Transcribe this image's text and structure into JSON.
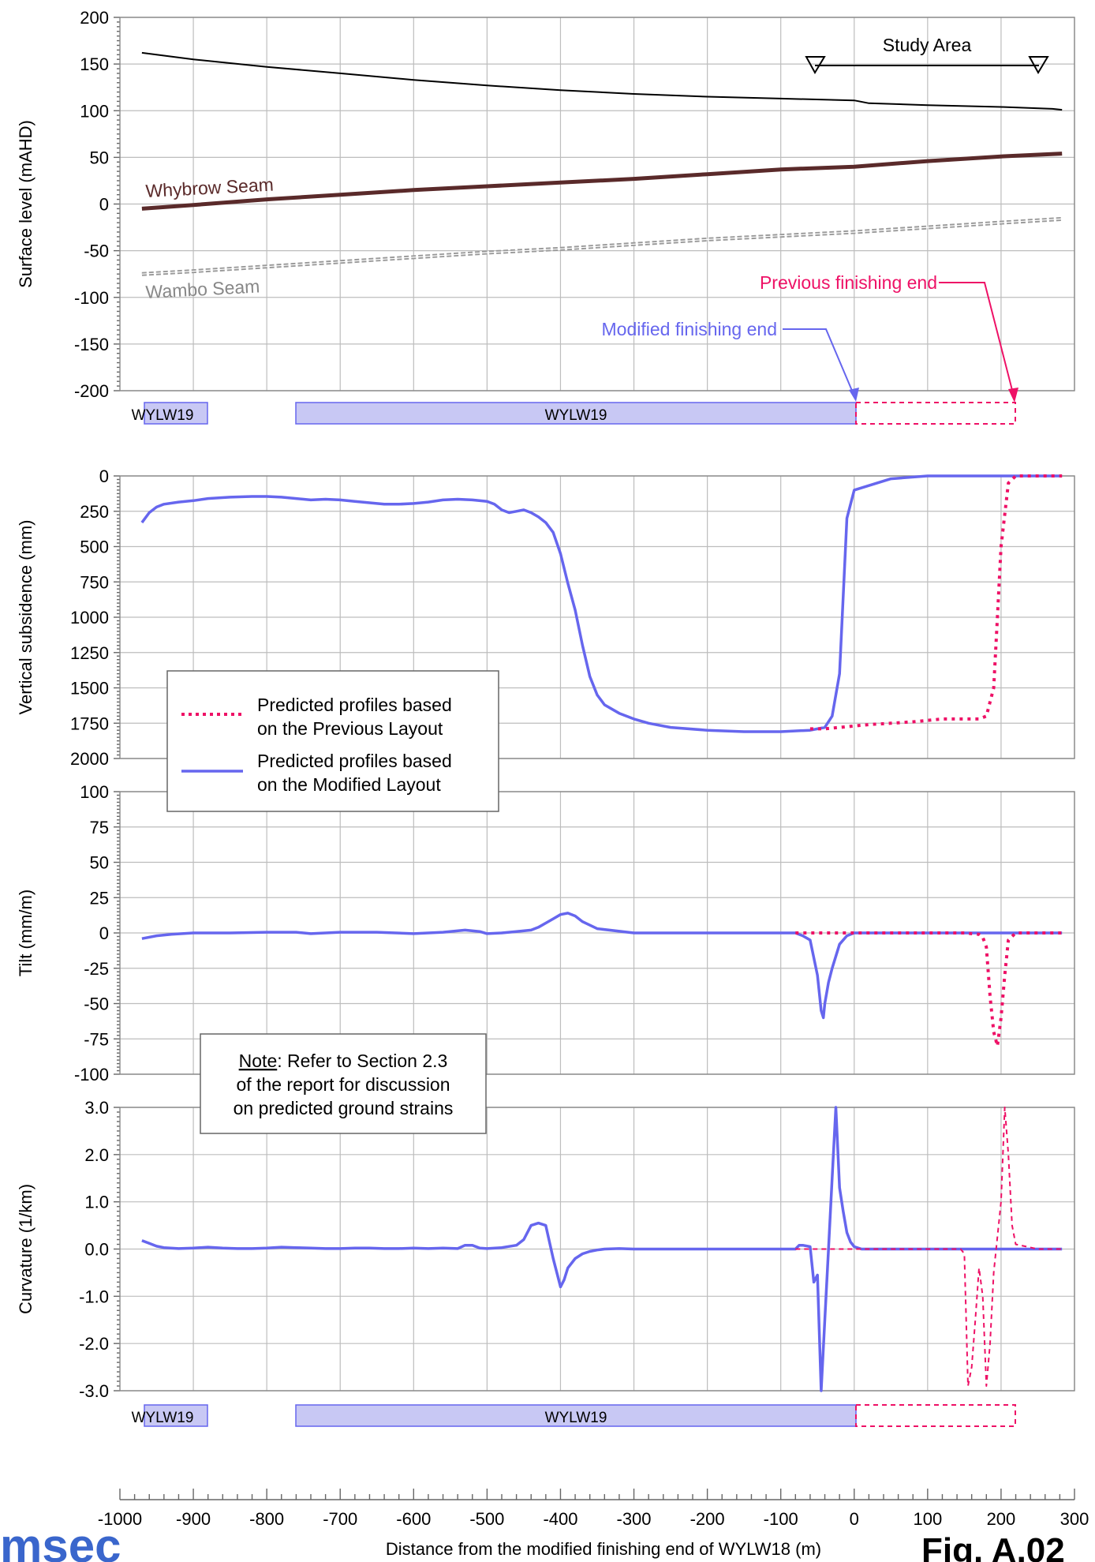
{
  "colors": {
    "modified": "#6666ee",
    "previous": "#ee1166",
    "surface": "#000000",
    "whybrow": "#5a2a2a",
    "wambo": "#999999",
    "panel_fill": "#c8c8f4"
  },
  "labels": {
    "study_area": "Study Area",
    "whybrow": "Whybrow Seam",
    "wambo": "Wambo Seam",
    "prev_end": "Previous finishing end",
    "mod_end": "Modified finishing end",
    "panel": "WYLW19",
    "legend_prev_1": "Predicted profiles based",
    "legend_prev_2": "on the Previous Layout",
    "legend_mod_1": "Predicted profiles based",
    "legend_mod_2": "on the Modified Layout",
    "note_1_underlined": "Note",
    "note_1_rest": ": Refer to Section 2.3",
    "note_2": "of the report for discussion",
    "note_3": "on predicted ground strains",
    "logo": "msec",
    "fig_label": "Fig. A.02"
  },
  "chart_data": [
    {
      "type": "line",
      "ylabel": "Surface level (mAHD)",
      "ylim": [
        -200,
        200
      ],
      "yticks": [
        "200",
        "150",
        "100",
        "50",
        "0",
        "-50",
        "-100",
        "-150",
        "-200"
      ],
      "xlim": [
        -1000,
        300
      ],
      "grid": true,
      "series": [
        {
          "name": "Surface",
          "x": [
            -970,
            -900,
            -800,
            -700,
            -600,
            -500,
            -400,
            -300,
            -200,
            -100,
            0,
            20,
            100,
            200,
            270,
            283
          ],
          "y": [
            162,
            155,
            147,
            140,
            133,
            127,
            122,
            118,
            115,
            113,
            111,
            108,
            106,
            104,
            102,
            101
          ]
        },
        {
          "name": "Whybrow Seam",
          "x": [
            -970,
            -900,
            -800,
            -700,
            -600,
            -500,
            -400,
            -300,
            -200,
            -100,
            0,
            100,
            200,
            283
          ],
          "y": [
            -5,
            -1,
            5,
            10,
            15,
            19,
            23,
            27,
            32,
            37,
            40,
            46,
            51,
            54
          ]
        },
        {
          "name": "Wambo Seam",
          "x": [
            -970,
            -900,
            -800,
            -700,
            -600,
            -500,
            -400,
            -300,
            -200,
            -100,
            0,
            100,
            200,
            283
          ],
          "y": [
            -75,
            -72,
            -67,
            -62,
            -57,
            -52,
            -48,
            -43,
            -38,
            -34,
            -30,
            -25,
            -20,
            -16
          ]
        }
      ]
    },
    {
      "type": "line",
      "ylabel": "Vertical subsidence (mm)",
      "ylim": [
        0,
        2000
      ],
      "yticks": [
        "0",
        "250",
        "500",
        "750",
        "1000",
        "1250",
        "1500",
        "1750",
        "2000"
      ],
      "xlim": [
        -1000,
        300
      ],
      "grid": true,
      "series": [
        {
          "name": "Predicted profiles based on the Modified Layout",
          "x": [
            -970,
            -960,
            -950,
            -940,
            -920,
            -900,
            -880,
            -850,
            -820,
            -800,
            -780,
            -760,
            -740,
            -720,
            -700,
            -680,
            -660,
            -640,
            -620,
            -600,
            -580,
            -560,
            -540,
            -520,
            -500,
            -490,
            -480,
            -470,
            -460,
            -450,
            -440,
            -430,
            -420,
            -410,
            -400,
            -390,
            -380,
            -370,
            -360,
            -350,
            -340,
            -320,
            -300,
            -280,
            -250,
            -200,
            -150,
            -100,
            -60,
            -50,
            -40,
            -30,
            -20,
            -10,
            0,
            50,
            100,
            150,
            200,
            250,
            283
          ],
          "y": [
            330,
            260,
            220,
            200,
            185,
            175,
            160,
            150,
            145,
            145,
            150,
            160,
            170,
            165,
            170,
            180,
            190,
            200,
            200,
            195,
            185,
            170,
            165,
            170,
            180,
            200,
            240,
            260,
            250,
            240,
            260,
            290,
            330,
            400,
            550,
            760,
            950,
            1200,
            1420,
            1550,
            1620,
            1680,
            1720,
            1750,
            1780,
            1800,
            1810,
            1810,
            1800,
            1790,
            1780,
            1700,
            1400,
            300,
            100,
            20,
            0,
            0,
            0,
            0,
            0
          ]
        },
        {
          "name": "Predicted profiles based on the Previous Layout",
          "x": [
            -60,
            -40,
            -20,
            0,
            20,
            50,
            80,
            100,
            120,
            150,
            170,
            180,
            190,
            195,
            200,
            210,
            220,
            250,
            283
          ],
          "y": [
            1790,
            1790,
            1780,
            1770,
            1760,
            1750,
            1740,
            1730,
            1720,
            1720,
            1720,
            1700,
            1500,
            1000,
            500,
            50,
            0,
            0,
            0
          ]
        }
      ]
    },
    {
      "type": "line",
      "ylabel": "Tilt (mm/m)",
      "ylim": [
        -100,
        100
      ],
      "yticks": [
        "100",
        "75",
        "50",
        "25",
        "0",
        "-25",
        "-50",
        "-75",
        "-100"
      ],
      "xlim": [
        -1000,
        300
      ],
      "grid": true,
      "series": [
        {
          "name": "Predicted profiles based on the Modified Layout",
          "x": [
            -970,
            -950,
            -930,
            -900,
            -850,
            -800,
            -760,
            -740,
            -700,
            -650,
            -600,
            -560,
            -530,
            -510,
            -500,
            -480,
            -460,
            -440,
            -430,
            -420,
            -410,
            -400,
            -390,
            -380,
            -370,
            -350,
            -300,
            -250,
            -200,
            -150,
            -100,
            -80,
            -70,
            -60,
            -50,
            -45,
            -42,
            -40,
            -35,
            -30,
            -20,
            -10,
            0,
            50,
            100,
            150,
            200,
            250,
            283
          ],
          "y": [
            -4,
            -2,
            -1,
            0,
            0,
            0.5,
            0.5,
            -0.5,
            0.5,
            0.5,
            -0.5,
            0.5,
            2,
            1,
            -0.5,
            0,
            1,
            2,
            4,
            7,
            10,
            13,
            14,
            12,
            8,
            3,
            0,
            0,
            0,
            0,
            0,
            0,
            -2,
            -5,
            -30,
            -55,
            -60,
            -50,
            -35,
            -25,
            -8,
            -2,
            0,
            0,
            0,
            0,
            0,
            0,
            0
          ]
        },
        {
          "name": "Predicted profiles based on the Previous Layout",
          "x": [
            -80,
            -60,
            -40,
            0,
            50,
            100,
            150,
            170,
            175,
            180,
            185,
            190,
            195,
            200,
            205,
            210,
            220,
            250,
            283
          ],
          "y": [
            0,
            0,
            0,
            0,
            0,
            0,
            0,
            -1,
            -3,
            -10,
            -45,
            -70,
            -80,
            -60,
            -30,
            -5,
            0,
            0,
            0
          ]
        }
      ]
    },
    {
      "type": "line",
      "ylabel": "Curvature (1/km)",
      "ylim": [
        -3.0,
        3.0
      ],
      "yticks": [
        "3.0",
        "2.0",
        "1.0",
        "0.0",
        "-1.0",
        "-2.0",
        "-3.0"
      ],
      "xlim": [
        -1000,
        300
      ],
      "grid": true,
      "series": [
        {
          "name": "Predicted profiles based on the Modified Layout",
          "x": [
            -970,
            -960,
            -950,
            -940,
            -920,
            -900,
            -880,
            -860,
            -840,
            -820,
            -800,
            -780,
            -760,
            -740,
            -720,
            -700,
            -680,
            -660,
            -640,
            -620,
            -600,
            -580,
            -560,
            -540,
            -530,
            -520,
            -510,
            -500,
            -480,
            -460,
            -450,
            -440,
            -430,
            -420,
            -410,
            -400,
            -395,
            -390,
            -380,
            -370,
            -360,
            -350,
            -340,
            -320,
            -300,
            -280,
            -250,
            -200,
            -150,
            -100,
            -80,
            -75,
            -70,
            -60,
            -55,
            -50,
            -45,
            -40,
            -35,
            -30,
            -25,
            -20,
            -15,
            -10,
            -5,
            0,
            10,
            50,
            100,
            150,
            200,
            250,
            283
          ],
          "y": [
            0.18,
            0.12,
            0.06,
            0.03,
            0.01,
            0.02,
            0.04,
            0.02,
            0.01,
            0.01,
            0.02,
            0.04,
            0.03,
            0.02,
            0.01,
            0.01,
            0.02,
            0.02,
            0.01,
            0.01,
            0.02,
            0.01,
            0.02,
            0.01,
            0.08,
            0.08,
            0.02,
            0.01,
            0.03,
            0.08,
            0.2,
            0.5,
            0.55,
            0.5,
            -0.2,
            -0.8,
            -0.65,
            -0.4,
            -0.2,
            -0.1,
            -0.05,
            -0.02,
            0,
            0.01,
            0,
            0,
            0,
            0,
            0,
            0,
            0,
            0.08,
            0.08,
            0.05,
            -0.7,
            -0.55,
            -3.0,
            -1.5,
            0.0,
            1.5,
            3.0,
            1.3,
            0.8,
            0.35,
            0.15,
            0.05,
            0,
            0,
            0,
            0,
            0,
            0,
            0
          ]
        },
        {
          "name": "Predicted profiles based on the Previous Layout",
          "x": [
            -80,
            -40,
            0,
            50,
            100,
            145,
            150,
            155,
            160,
            165,
            170,
            175,
            180,
            185,
            190,
            200,
            205,
            210,
            215,
            220,
            250,
            283
          ],
          "y": [
            0,
            0,
            0,
            0,
            0,
            0,
            -0.1,
            -2.9,
            -2.5,
            -1.5,
            -0.4,
            -1.0,
            -2.9,
            -2.0,
            -0.5,
            1.0,
            3.0,
            2.0,
            0.5,
            0.1,
            0,
            0
          ]
        }
      ]
    }
  ],
  "xaxis": {
    "label": "Distance from the modified finishing end of WYLW18 (m)",
    "ticks": [
      "-1000",
      "-900",
      "-800",
      "-700",
      "-600",
      "-500",
      "-400",
      "-300",
      "-200",
      "-100",
      "0",
      "100",
      "200",
      "300"
    ]
  }
}
